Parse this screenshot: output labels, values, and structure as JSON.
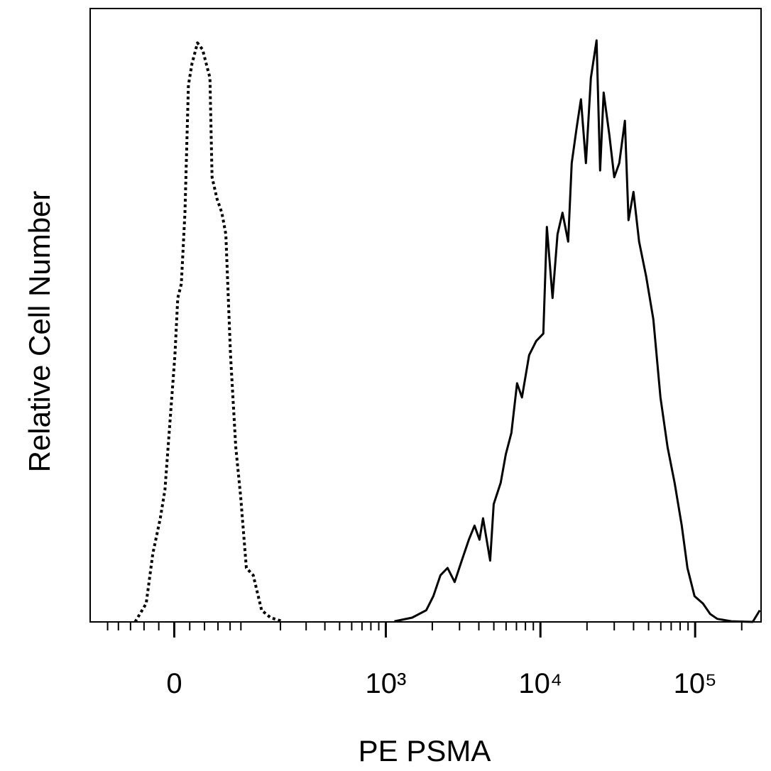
{
  "chart_data": {
    "type": "histogram-line",
    "xlabel": "PE PSMA",
    "ylabel": "Relative Cell Number",
    "xscale": "asinh",
    "xscale_cofactor": 86,
    "xlim": [
      -138,
      266700
    ],
    "ylim": [
      0,
      100
    ],
    "xticks": [
      0,
      {
        "value": 1000,
        "label": "10³"
      },
      {
        "value": 10000,
        "label": "10⁴"
      },
      {
        "value": 100000,
        "label": "10⁵"
      }
    ],
    "xminor_ticks": [
      -100,
      -80,
      -60,
      -40,
      -20,
      20,
      40,
      60,
      80,
      100,
      200,
      300,
      400,
      500,
      600,
      700,
      800,
      900,
      2000,
      3000,
      4000,
      5000,
      6000,
      7000,
      8000,
      9000,
      20000,
      30000,
      40000,
      50000,
      60000,
      70000,
      80000,
      90000,
      200000
    ],
    "series": [
      {
        "color": "#000000",
        "line_style": "dotted",
        "x": [
          -53,
          -37,
          -28,
          -18,
          -12,
          -4.5,
          0.9,
          4.5,
          9.1,
          13.7,
          18.3,
          22.9,
          30.4,
          37.4,
          42.5,
          47.8,
          51,
          58.4,
          66.1,
          72.7,
          80.7,
          90.2,
          99.5,
          111,
          126,
          146,
          170,
          206
        ],
        "values": [
          0,
          3.0,
          11.1,
          16.9,
          21.5,
          34.3,
          43.5,
          52.8,
          55.1,
          66.7,
          87.5,
          91.0,
          94.4,
          93.3,
          91.0,
          88.7,
          72.5,
          69.0,
          66.7,
          63.2,
          43.5,
          28.5,
          20.4,
          8.8,
          7.6,
          1.9,
          0.7,
          0.1
        ]
      },
      {
        "color": "#000000",
        "line_style": "solid",
        "x": [
          1137,
          1480,
          1828,
          2032,
          2259,
          2510,
          2790,
          3100,
          3445,
          3750,
          4040,
          4256,
          4730,
          4990,
          5540,
          5970,
          6490,
          7060,
          7600,
          8450,
          9390,
          10440,
          11010,
          11980,
          12900,
          13890,
          15110,
          15930,
          17150,
          18280,
          19680,
          21190,
          23060,
          24320,
          25640,
          27880,
          30010,
          32340,
          35170,
          37080,
          39930,
          43440,
          48280,
          53680,
          59680,
          66350,
          73680,
          81920,
          89130,
          99080,
          112400,
          125000,
          138900,
          171500,
          235500,
          261800
        ],
        "values": [
          0.1,
          0.7,
          1.9,
          4.2,
          7.6,
          8.8,
          6.5,
          10.0,
          13.4,
          15.7,
          13.4,
          16.9,
          10.0,
          19.2,
          22.7,
          27.3,
          30.8,
          38.9,
          36.6,
          43.5,
          45.8,
          47.0,
          64.4,
          52.8,
          63.2,
          66.7,
          62.0,
          74.8,
          80.6,
          85.2,
          74.8,
          88.7,
          94.8,
          73.6,
          86.3,
          79.4,
          72.5,
          74.8,
          81.7,
          65.5,
          70.1,
          62.0,
          56.3,
          49.3,
          36.6,
          28.5,
          22.7,
          15.7,
          8.8,
          4.2,
          3.0,
          1.3,
          0.5,
          0.1,
          0,
          1.9
        ]
      }
    ]
  }
}
